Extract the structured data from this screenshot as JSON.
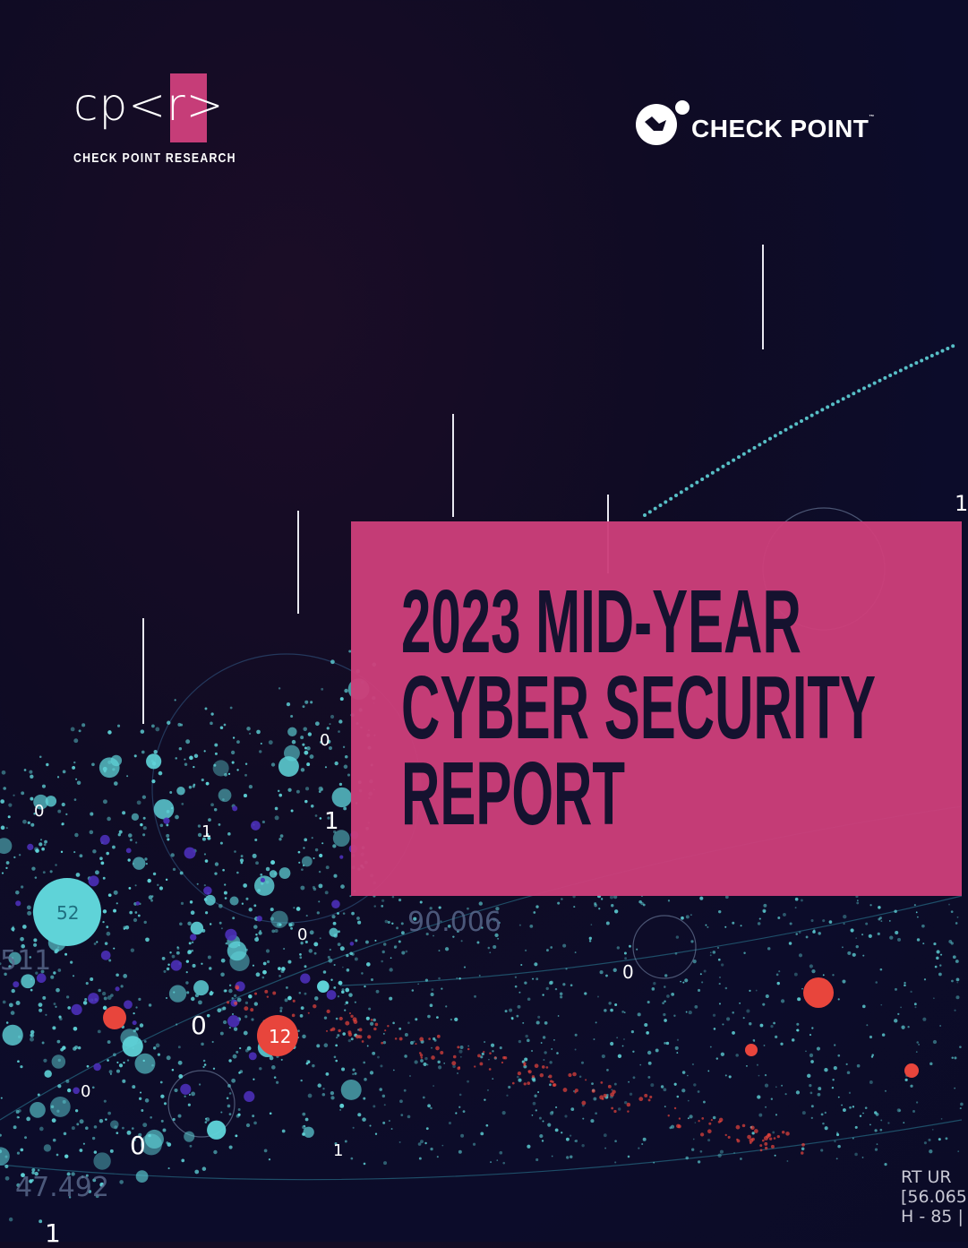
{
  "logos": {
    "cpr_mark": "cp<r>",
    "cpr_subtitle": "CHECK POINT RESEARCH",
    "checkpoint_name": "CHECK POINT",
    "checkpoint_tm": "™"
  },
  "title": {
    "line1": "2023 MID-YEAR",
    "line2": "CYBER SECURITY",
    "line3": "REPORT"
  },
  "colors": {
    "background": "#0e0c28",
    "accent_pink": "#c63d78",
    "title_text": "#15122f",
    "dot_cyan": "#5fd3d8",
    "dot_red": "#e8453c",
    "dot_purple": "#4b2fb8"
  },
  "decor_labels": {
    "bubble_52": "52",
    "bubble_12": "12",
    "num_90006": "90.006",
    "num_47492": "47.492",
    "num_511": "511",
    "corner_line1": "RT UR",
    "corner_line2": "[56.065",
    "corner_line3": "H - 85 |",
    "zero": "0",
    "one": "1"
  }
}
